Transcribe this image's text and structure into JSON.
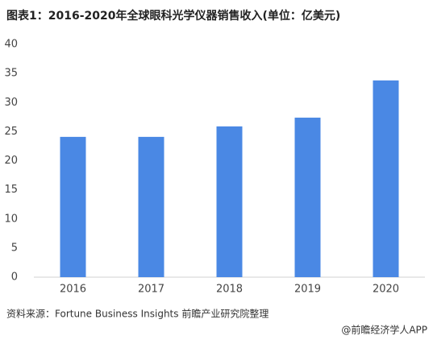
{
  "chart_data": {
    "type": "bar",
    "title": "图表1：2016-2020年全球眼科光学仪器销售收入(单位：亿美元)",
    "categories": [
      "2016",
      "2017",
      "2018",
      "2019",
      "2020"
    ],
    "values": [
      24.1,
      24.1,
      25.9,
      27.4,
      33.8
    ],
    "color": "#4a88e4",
    "ylim": [
      0,
      40
    ],
    "yticks": [
      0,
      5,
      10,
      15,
      20,
      25,
      30,
      35,
      40
    ],
    "grid": false,
    "source": "资料来源：Fortune Business Insights 前瞻产业研究院整理",
    "footer": "@前瞻经济学人APP"
  }
}
